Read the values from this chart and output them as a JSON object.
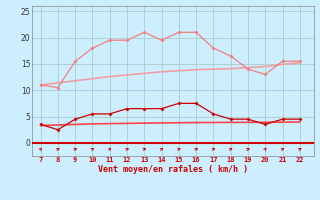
{
  "x": [
    7,
    8,
    9,
    10,
    11,
    12,
    13,
    14,
    15,
    16,
    17,
    18,
    19,
    20,
    21,
    22
  ],
  "rafales": [
    11,
    10.5,
    15.5,
    18,
    19.5,
    19.5,
    21,
    19.5,
    21,
    21,
    18,
    16.5,
    14,
    13,
    15.5,
    15.5
  ],
  "moyen": [
    3.5,
    2.5,
    4.5,
    5.5,
    5.5,
    6.5,
    6.5,
    6.5,
    7.5,
    7.5,
    5.5,
    4.5,
    4.5,
    3.5,
    4.5,
    4.5
  ],
  "trend_rafales": [
    11.0,
    11.4,
    11.8,
    12.2,
    12.6,
    12.9,
    13.2,
    13.5,
    13.7,
    13.9,
    14.0,
    14.1,
    14.3,
    14.5,
    14.9,
    15.2
  ],
  "trend_moyen": [
    3.3,
    3.4,
    3.5,
    3.6,
    3.65,
    3.7,
    3.75,
    3.78,
    3.82,
    3.85,
    3.87,
    3.89,
    3.9,
    3.91,
    3.93,
    3.95
  ],
  "color_rafales": "#f08080",
  "color_moyen": "#cc0000",
  "color_trend_rafales": "#f0a0a0",
  "color_trend_moyen": "#ff4444",
  "bg_color": "#cceeff",
  "grid_color": "#aacccc",
  "xlabel": "Vent moyen/en rafales ( km/h )",
  "ylim": [
    -2.5,
    26
  ],
  "yticks": [
    0,
    5,
    10,
    15,
    20,
    25
  ],
  "xlim": [
    6.5,
    22.8
  ]
}
